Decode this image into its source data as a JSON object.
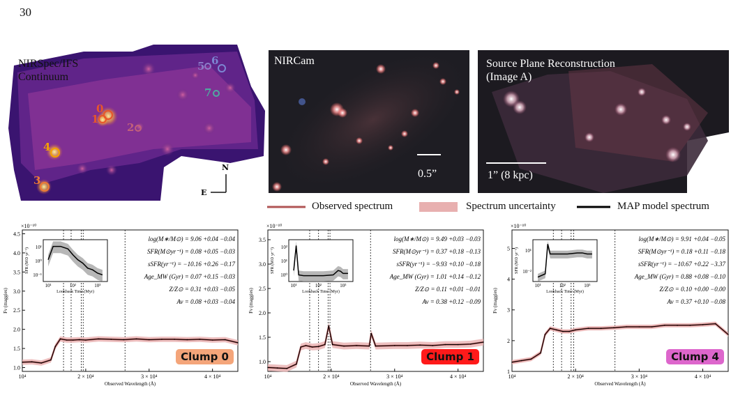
{
  "page_number": "30",
  "panels": {
    "nirspec": {
      "title": "NIRSpec/IFS\nContinuum",
      "compass_n": "N",
      "compass_e": "E",
      "clumps": [
        {
          "id": "0",
          "color": "#e8562a"
        },
        {
          "id": "1",
          "color": "#e8562a"
        },
        {
          "id": "2",
          "color": "#c2607a"
        },
        {
          "id": "3",
          "color": "#ee7b33"
        },
        {
          "id": "4",
          "color": "#f5a100"
        },
        {
          "id": "5",
          "color": "#8c7dc9"
        },
        {
          "id": "6",
          "color": "#7c86d2"
        },
        {
          "id": "7",
          "color": "#4fa9a0"
        }
      ]
    },
    "nircam": {
      "title": "NIRCam",
      "scale": "0.5”"
    },
    "source_plane": {
      "title": "Source Plane Reconstruction\n(Image A)",
      "scale": "1” (8 kpc)"
    }
  },
  "legend": {
    "observed": "Observed spectrum",
    "uncertainty": "Spectrum uncertainty",
    "model": "MAP model spectrum",
    "colors": {
      "observed": "#b05555",
      "uncertainty": "#e8b0b0",
      "model": "#000000"
    }
  },
  "chart_data": [
    {
      "type": "line",
      "name": "Clump 0",
      "label": "Clump 0",
      "label_color": "#f4a57a",
      "scale_note": "×10⁻¹⁰",
      "xlabel": "Observed Wavelength (Å)",
      "ylabel": "Fν (maggies)",
      "xlim": [
        10000,
        44000
      ],
      "ylim": [
        0.9,
        4.6
      ],
      "yticks": [
        "1.0",
        "1.5",
        "2.0",
        "2.5",
        "3.0",
        "3.5",
        "4.0",
        "4.5"
      ],
      "ytick_values": [
        1.0,
        1.5,
        2.0,
        2.5,
        3.0,
        3.5,
        4.0,
        4.5
      ],
      "xticks": [
        "10⁴",
        "2 × 10⁴",
        "3 × 10⁴",
        "4 × 10⁴"
      ],
      "xtick_values": [
        10000,
        20000,
        30000,
        40000
      ],
      "x": [
        10000,
        11500,
        13000,
        14500,
        15200,
        16000,
        17000,
        18000,
        19000,
        20000,
        22000,
        24000,
        26000,
        28000,
        30000,
        32000,
        34000,
        36000,
        38000,
        40000,
        42000,
        44000
      ],
      "y": [
        1.14,
        1.15,
        1.12,
        1.2,
        1.55,
        1.75,
        1.72,
        1.72,
        1.73,
        1.72,
        1.75,
        1.74,
        1.73,
        1.75,
        1.73,
        1.74,
        1.74,
        1.73,
        1.74,
        1.72,
        1.73,
        1.65
      ],
      "lines_x": [
        16500,
        17700,
        19300,
        19600,
        26200
      ],
      "stats": [
        "log(M∗/M⊙) = 9.06 +0.04 −0.04",
        "SFR(M⊙yr⁻¹) = 0.08 +0.05 −0.03",
        "sSFR(yr⁻¹) = −10.16 +0.26 −0.17",
        "Age_MW (Gyr) = 0.07 +0.15 −0.03",
        "Z/Z⊙ = 0.31 +0.03 −0.05",
        "Av = 0.08 +0.03 −0.04"
      ],
      "inset": {
        "ylabel": "SFR (M⊙ yr⁻¹)",
        "xlabel": "Lookback Time (Myr)",
        "yticks": [
          "10⁻¹",
          "10⁰",
          "10¹"
        ],
        "xticks": [
          "10¹",
          "10²",
          "10³"
        ],
        "x": [
          1.0,
          1.2,
          1.5,
          1.8,
          2.0,
          2.2,
          2.4,
          2.6,
          2.8,
          3.0,
          3.2
        ],
        "y": [
          0.3,
          1.1,
          1.1,
          0.95,
          0.6,
          0.3,
          0.1,
          -0.2,
          -0.3,
          -0.5,
          -0.6
        ]
      }
    },
    {
      "type": "line",
      "name": "Clump 1",
      "label": "Clump 1",
      "label_color": "#ff1a1a",
      "scale_note": "×10⁻¹⁰",
      "xlabel": "Observed Wavelength (Å)",
      "ylabel": "Fν (maggies)",
      "xlim": [
        10000,
        44000
      ],
      "ylim": [
        0.8,
        3.7
      ],
      "yticks": [
        "1.0",
        "1.5",
        "2.0",
        "2.5",
        "3.0",
        "3.5"
      ],
      "ytick_values": [
        1.0,
        1.5,
        2.0,
        2.5,
        3.0,
        3.5
      ],
      "xticks": [
        "10⁴",
        "2 × 10⁴",
        "3 × 10⁴",
        "4 × 10⁴"
      ],
      "xtick_values": [
        10000,
        20000,
        30000,
        40000
      ],
      "x": [
        10000,
        11500,
        13000,
        14500,
        15200,
        16000,
        17000,
        18000,
        19000,
        19600,
        20200,
        22000,
        24000,
        26000,
        26300,
        27000,
        30000,
        32000,
        34000,
        36000,
        38000,
        40000,
        42000,
        44000
      ],
      "y": [
        0.88,
        0.87,
        0.86,
        0.95,
        1.3,
        1.33,
        1.3,
        1.31,
        1.35,
        1.73,
        1.35,
        1.32,
        1.33,
        1.32,
        1.58,
        1.32,
        1.33,
        1.33,
        1.34,
        1.33,
        1.35,
        1.35,
        1.36,
        1.4
      ],
      "lines_x": [
        16600,
        18000,
        19500,
        19800,
        26200
      ],
      "stats": [
        "log(M∗/M⊙) = 9.49 +0.03 −0.03",
        "SFR(M⊙yr⁻¹) = 0.37 +0.18 −0.13",
        "sSFR(yr⁻¹) = −9.93 +0.10 −0.18",
        "Age_MW (Gyr) = 1.01 +0.14 −0.12",
        "Z/Z⊙ = 0.11 +0.01 −0.01",
        "Av = 0.38 +0.12 −0.09"
      ],
      "inset": {
        "ylabel": "SFR (M⊙ yr⁻¹)",
        "xlabel": "Lookback Time (Myr)",
        "yticks": [
          "10⁰",
          "10¹",
          "10²"
        ],
        "xticks": [
          "10¹",
          "10²",
          "10³"
        ],
        "x": [
          1.0,
          1.1,
          1.2,
          1.4,
          1.8,
          2.2,
          2.6,
          2.8,
          2.9,
          3.0,
          3.2
        ],
        "y": [
          0.5,
          2.2,
          0.2,
          0.15,
          0.15,
          0.15,
          0.2,
          0.5,
          0.45,
          0.3,
          0.3
        ]
      }
    },
    {
      "type": "line",
      "name": "Clump 4",
      "label": "Clump 4",
      "label_color": "#dd66cc",
      "scale_note": "×10⁻¹⁰",
      "xlabel": "Observed Wavelength (Å)",
      "ylabel": "Fν (maggies)",
      "xlim": [
        10000,
        44000
      ],
      "ylim": [
        1.0,
        5.6
      ],
      "yticks": [
        "1",
        "2",
        "3",
        "4",
        "5"
      ],
      "ytick_values": [
        1,
        2,
        3,
        4,
        5
      ],
      "xticks": [
        "10⁴",
        "2 × 10⁴",
        "3 × 10⁴",
        "4 × 10⁴"
      ],
      "xtick_values": [
        10000,
        20000,
        30000,
        40000
      ],
      "x": [
        10000,
        11500,
        13000,
        14500,
        15200,
        16000,
        17000,
        18000,
        19000,
        20000,
        22000,
        24000,
        26000,
        28000,
        30000,
        32000,
        34000,
        36000,
        38000,
        40000,
        42000,
        44000
      ],
      "y": [
        1.3,
        1.35,
        1.4,
        1.6,
        2.2,
        2.4,
        2.35,
        2.3,
        2.3,
        2.35,
        2.4,
        2.4,
        2.42,
        2.45,
        2.45,
        2.45,
        2.5,
        2.5,
        2.5,
        2.52,
        2.55,
        2.2
      ],
      "lines_x": [
        16500,
        17800,
        19300,
        19700,
        26200
      ],
      "stats": [
        "log(M∗/M⊙) = 9.91 +0.04 −0.05",
        "SFR(M⊙yr⁻¹) = 0.18 +0.11 −0.18",
        "sSFR(yr⁻¹) = −10.67 +0.22 −3.37",
        "Age_MW (Gyr) = 0.88 +0.08 −0.10",
        "Z/Z⊙ = 0.10 +0.00 −0.00",
        "Av = 0.37 +0.10 −0.08"
      ],
      "inset": {
        "ylabel": "SFR (M⊙ yr⁻¹)",
        "xlabel": "Lookback Time (Myr)",
        "yticks": [
          "10⁻²",
          "10¹"
        ],
        "xticks": [
          "10¹",
          "10²",
          "10³"
        ],
        "x": [
          1.0,
          1.3,
          1.4,
          1.5,
          1.8,
          2.2,
          2.6,
          2.8,
          3.0,
          3.2
        ],
        "y": [
          -1.5,
          -1.2,
          1.5,
          0.6,
          0.6,
          0.6,
          0.7,
          0.7,
          0.6,
          0.6
        ]
      }
    }
  ]
}
